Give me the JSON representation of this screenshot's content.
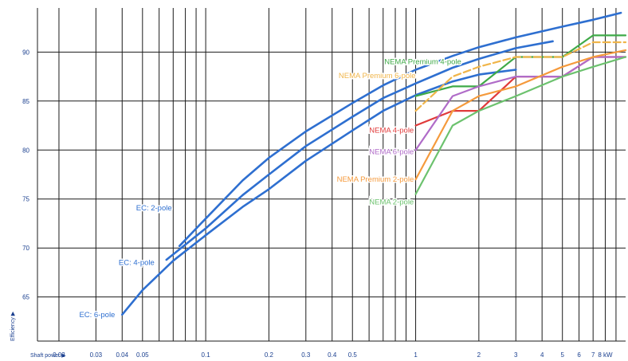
{
  "chart_data": {
    "type": "line",
    "xscale": "log",
    "xlim": [
      0.0158,
      10
    ],
    "ylim": [
      60.5,
      94.5
    ],
    "grid": true,
    "x_title": "Shaft power ▶",
    "y_title": "Efficiency ▶",
    "x_ticks": [
      {
        "v": 0.02,
        "label": "0.02"
      },
      {
        "v": 0.03,
        "label": "0.03"
      },
      {
        "v": 0.04,
        "label": "0.04"
      },
      {
        "v": 0.05,
        "label": "0.05"
      },
      {
        "v": 0.1,
        "label": "0.1"
      },
      {
        "v": 0.2,
        "label": "0.2"
      },
      {
        "v": 0.3,
        "label": "0.3"
      },
      {
        "v": 0.4,
        "label": "0.4"
      },
      {
        "v": 0.5,
        "label": "0.5"
      },
      {
        "v": 1,
        "label": "1"
      },
      {
        "v": 2,
        "label": "2"
      },
      {
        "v": 3,
        "label": "3"
      },
      {
        "v": 4,
        "label": "4"
      },
      {
        "v": 5,
        "label": "5"
      },
      {
        "v": 6,
        "label": "6"
      },
      {
        "v": 7,
        "label": "7"
      },
      {
        "v": 8,
        "label": "8 kW"
      }
    ],
    "x_gridlines": [
      0.02,
      0.03,
      0.04,
      0.05,
      0.06,
      0.07,
      0.08,
      0.09,
      0.1,
      0.2,
      0.3,
      0.4,
      0.5,
      0.6,
      0.7,
      0.8,
      0.9,
      1,
      2,
      3,
      4,
      5,
      6,
      7,
      8,
      9
    ],
    "y_ticks": [
      65,
      70,
      75,
      80,
      85,
      90
    ],
    "series": [
      {
        "name": "EC: 2-pole",
        "color": "#2e6fd0",
        "width": 2.6,
        "points": [
          [
            0.075,
            70.2
          ],
          [
            0.1,
            73.0
          ],
          [
            0.15,
            76.9
          ],
          [
            0.2,
            79.2
          ],
          [
            0.3,
            81.9
          ],
          [
            0.5,
            84.8
          ],
          [
            0.7,
            86.6
          ],
          [
            1,
            88.2
          ],
          [
            1.5,
            89.6
          ],
          [
            2,
            90.5
          ],
          [
            3,
            91.5
          ],
          [
            5,
            92.6
          ],
          [
            7,
            93.3
          ],
          [
            9.5,
            94.0
          ]
        ]
      },
      {
        "name": "EC: 4-pole",
        "color": "#2e6fd0",
        "width": 2.6,
        "points": [
          [
            0.065,
            68.8
          ],
          [
            0.1,
            72.0
          ],
          [
            0.15,
            75.4
          ],
          [
            0.2,
            77.5
          ],
          [
            0.3,
            80.4
          ],
          [
            0.5,
            83.4
          ],
          [
            0.7,
            85.3
          ],
          [
            1,
            86.8
          ],
          [
            1.5,
            88.4
          ],
          [
            2,
            89.3
          ],
          [
            3,
            90.4
          ],
          [
            4.5,
            91.1
          ]
        ]
      },
      {
        "name": "EC: 6-pole",
        "color": "#2e6fd0",
        "width": 2.6,
        "points": [
          [
            0.04,
            63.2
          ],
          [
            0.05,
            65.7
          ],
          [
            0.07,
            68.7
          ],
          [
            0.1,
            71.3
          ],
          [
            0.15,
            74.2
          ],
          [
            0.2,
            76.0
          ],
          [
            0.3,
            78.9
          ],
          [
            0.5,
            82.0
          ],
          [
            0.7,
            84.0
          ],
          [
            1,
            85.6
          ],
          [
            1.5,
            87.0
          ],
          [
            2,
            87.7
          ],
          [
            3,
            88.2
          ]
        ]
      },
      {
        "name": "NEMA Premium 4-pole",
        "color": "#3faa48",
        "width": 2.2,
        "points": [
          [
            1,
            85.5
          ],
          [
            1.5,
            86.5
          ],
          [
            2,
            86.5
          ],
          [
            3,
            89.5
          ],
          [
            5,
            89.5
          ],
          [
            7,
            91.7
          ],
          [
            10,
            91.7
          ]
        ]
      },
      {
        "name": "NEMA Premium 6-pole",
        "color": "#f0b54a",
        "width": 2.2,
        "dashed": true,
        "points": [
          [
            1,
            84.0
          ],
          [
            1.5,
            87.5
          ],
          [
            2,
            88.5
          ],
          [
            3,
            89.5
          ],
          [
            5,
            89.5
          ],
          [
            7,
            91.0
          ],
          [
            10,
            91.0
          ]
        ]
      },
      {
        "name": "NEMA 4-pole",
        "color": "#e03a3a",
        "width": 2.2,
        "points": [
          [
            1,
            82.5
          ],
          [
            1.5,
            84.0
          ],
          [
            2,
            84.0
          ],
          [
            3,
            87.5
          ],
          [
            5,
            87.5
          ],
          [
            7,
            89.5
          ],
          [
            10,
            89.5
          ]
        ]
      },
      {
        "name": "NEMA 6-pole",
        "color": "#b06cc8",
        "width": 2.2,
        "points": [
          [
            1,
            80.0
          ],
          [
            1.5,
            85.5
          ],
          [
            2,
            86.5
          ],
          [
            3,
            87.5
          ],
          [
            5,
            87.5
          ],
          [
            7,
            89.5
          ],
          [
            10,
            89.5
          ]
        ]
      },
      {
        "name": "NEMA Premium 2-pole",
        "color": "#f59a3c",
        "width": 2.2,
        "points": [
          [
            1,
            77.0
          ],
          [
            1.5,
            84.0
          ],
          [
            2,
            85.5
          ],
          [
            3,
            86.5
          ],
          [
            5,
            88.5
          ],
          [
            7,
            89.5
          ],
          [
            10,
            90.2
          ]
        ]
      },
      {
        "name": "NEMA 2-pole",
        "color": "#6cc26e",
        "width": 2.2,
        "points": [
          [
            1,
            75.5
          ],
          [
            1.5,
            82.5
          ],
          [
            2,
            84.0
          ],
          [
            3,
            85.5
          ],
          [
            5,
            87.5
          ],
          [
            7,
            88.5
          ],
          [
            10,
            89.5
          ]
        ]
      }
    ],
    "labels": [
      {
        "text": "EC: 2-pole",
        "color": "#2e6fd0",
        "x": 0.069,
        "y": 74.1,
        "anchor": "end"
      },
      {
        "text": "EC: 4-pole",
        "color": "#2e6fd0",
        "x": 0.057,
        "y": 68.5,
        "anchor": "end"
      },
      {
        "text": "EC: 6-pole",
        "color": "#2e6fd0",
        "x": 0.037,
        "y": 63.2,
        "anchor": "end"
      },
      {
        "text": "NEMA Premium 4-pole",
        "color": "#3faa48",
        "x": 1.65,
        "y": 89.0,
        "anchor": "end"
      },
      {
        "text": "NEMA Premium 6-pole",
        "color": "#f0b54a",
        "x": 1.0,
        "y": 87.6,
        "anchor": "end"
      },
      {
        "text": "NEMA 4-pole",
        "color": "#e03a3a",
        "x": 0.98,
        "y": 82.0,
        "anchor": "end"
      },
      {
        "text": "NEMA 6-pole",
        "color": "#b06cc8",
        "x": 0.98,
        "y": 79.8,
        "anchor": "end"
      },
      {
        "text": "NEMA Premium 2-pole",
        "color": "#f59a3c",
        "x": 0.98,
        "y": 77.0,
        "anchor": "end"
      },
      {
        "text": "NEMA 2-pole",
        "color": "#6cc26e",
        "x": 0.98,
        "y": 74.7,
        "anchor": "end"
      }
    ]
  }
}
